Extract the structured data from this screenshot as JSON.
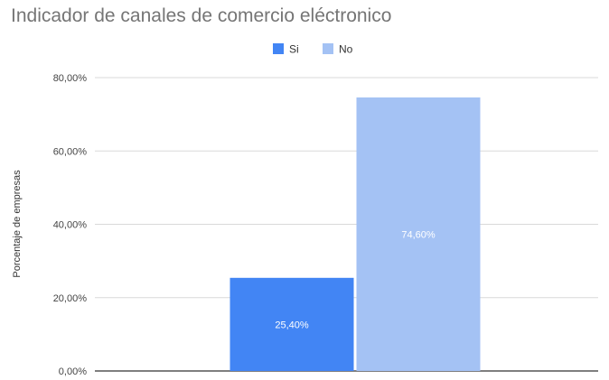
{
  "chart_data": {
    "type": "bar",
    "title": "Indicador de canales de comercio eléctronico",
    "xlabel": "",
    "ylabel": "Porcentaje de empresas",
    "ylim": [
      0,
      80
    ],
    "yticks": [
      {
        "value": 0,
        "label": "0,00%"
      },
      {
        "value": 20,
        "label": "20,00%"
      },
      {
        "value": 40,
        "label": "40,00%"
      },
      {
        "value": 60,
        "label": "60,00%"
      },
      {
        "value": 80,
        "label": "80,00%"
      }
    ],
    "grid": true,
    "legend_position": "top",
    "series": [
      {
        "name": "Si",
        "value": 25.4,
        "label": "25,40%",
        "color": "#4285f4"
      },
      {
        "name": "No",
        "value": 74.6,
        "label": "74,60%",
        "color": "#a4c2f4"
      }
    ]
  }
}
